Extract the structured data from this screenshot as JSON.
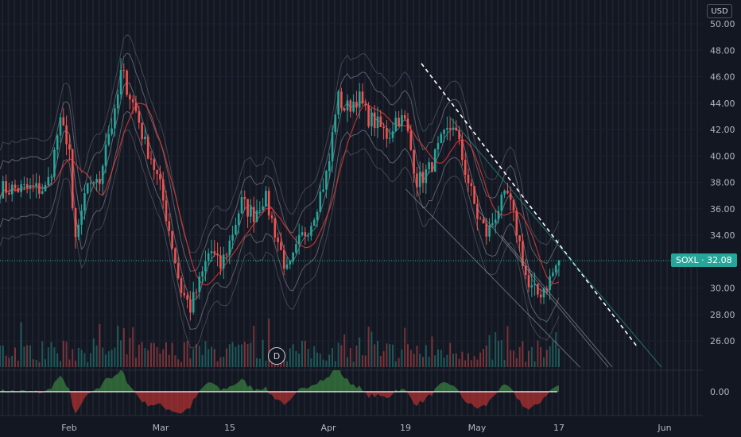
{
  "chart_data": {
    "type": "candlestick",
    "symbol": "SOXL",
    "last_price": "32.08",
    "last_value": 32.08,
    "currency": "USD",
    "dividend_marker": "D",
    "y_ticks": [
      "50.00",
      "48.00",
      "46.00",
      "44.00",
      "42.00",
      "40.00",
      "38.00",
      "36.00",
      "34.00",
      "32.00",
      "30.00",
      "28.00",
      "26.00"
    ],
    "y_range": [
      24.0,
      51.0
    ],
    "oscillator_tick": "0.00",
    "x_labels": [
      "Feb",
      "Mar",
      "15",
      "Apr",
      "19",
      "May",
      "17",
      "Jun"
    ],
    "price_path": [
      [
        "Jan 25",
        37.5
      ],
      [
        "Jan 27",
        39.5
      ],
      [
        "Jan 29",
        42.5
      ],
      [
        "Feb 1",
        41.0
      ],
      [
        "Feb 2",
        35.5
      ],
      [
        "Feb 3",
        33.5
      ],
      [
        "Feb 5",
        36.0
      ],
      [
        "Feb 8",
        38.5
      ],
      [
        "Feb 10",
        37.5
      ],
      [
        "Feb 12",
        41.0
      ],
      [
        "Feb 15",
        43.0
      ],
      [
        "Feb 17",
        46.5
      ],
      [
        "Feb 19",
        45.0
      ],
      [
        "Feb 22",
        43.0
      ],
      [
        "Feb 24",
        41.0
      ],
      [
        "Feb 26",
        40.0
      ],
      [
        "Mar 1",
        37.5
      ],
      [
        "Mar 3",
        34.0
      ],
      [
        "Mar 5",
        30.0
      ],
      [
        "Mar 7",
        28.5
      ],
      [
        "Mar 9",
        30.5
      ],
      [
        "Mar 11",
        33.0
      ],
      [
        "Mar 13",
        31.5
      ],
      [
        "Mar 15",
        33.5
      ],
      [
        "Mar 17",
        36.5
      ],
      [
        "Mar 19",
        35.5
      ],
      [
        "Mar 21",
        37.0
      ],
      [
        "Mar 23",
        34.0
      ],
      [
        "Mar 25",
        31.0
      ],
      [
        "Mar 27",
        33.5
      ],
      [
        "Mar 29",
        35.0
      ],
      [
        "Apr 1",
        39.0
      ],
      [
        "Apr 3",
        44.5
      ],
      [
        "Apr 5",
        43.5
      ],
      [
        "Apr 8",
        44.5
      ],
      [
        "Apr 10",
        43.0
      ],
      [
        "Apr 12",
        42.5
      ],
      [
        "Apr 15",
        41.5
      ],
      [
        "Apr 17",
        43.0
      ],
      [
        "Apr 19",
        42.5
      ],
      [
        "Apr 21",
        38.0
      ],
      [
        "Apr 23",
        39.0
      ],
      [
        "Apr 25",
        41.0
      ],
      [
        "Apr 27",
        42.5
      ],
      [
        "Apr 29",
        39.0
      ],
      [
        "May 1",
        35.5
      ],
      [
        "May 3",
        34.0
      ],
      [
        "May 5",
        36.0
      ],
      [
        "May 7",
        37.0
      ],
      [
        "May 9",
        34.0
      ],
      [
        "May 11",
        30.0
      ],
      [
        "May 13",
        29.5
      ],
      [
        "May 15",
        30.5
      ],
      [
        "May 17",
        32.08
      ]
    ],
    "trendlines": {
      "dashed_resistance": [
        [
          "Apr 19",
          47.0
        ],
        [
          "May 31",
          25.5
        ]
      ],
      "channel_lines": [
        [
          [
            "Apr 19",
            37.5
          ],
          [
            "May 20",
            24.0
          ]
        ],
        [
          [
            "May 1",
            36.0
          ],
          [
            "May 24",
            24.0
          ]
        ]
      ]
    },
    "grid": true,
    "oscillator": "histogram below price pane"
  }
}
